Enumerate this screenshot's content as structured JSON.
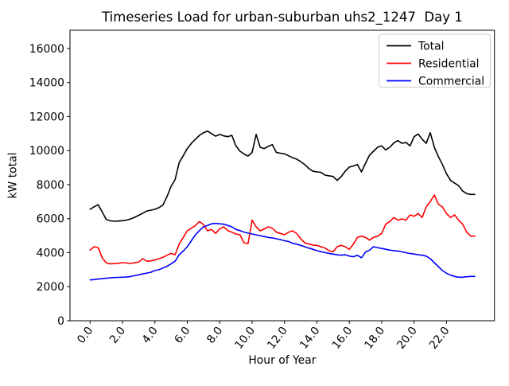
{
  "chart_data": {
    "type": "line",
    "title": "Timeseries Load for urban-suburban uhs2_1247  Day 1",
    "xlabel": "Hour of Year",
    "ylabel": "kW total",
    "xlim": [
      -1.24,
      24.96
    ],
    "ylim": [
      0,
      17076
    ],
    "grid": false,
    "legend_position": "upper right",
    "x_start": 0,
    "x_step": 0.25,
    "x_ticks": [
      0,
      2,
      4,
      6,
      8,
      10,
      12,
      14,
      16,
      18,
      20,
      22
    ],
    "x_tick_labels": [
      "0.0",
      "2.0",
      "4.0",
      "6.0",
      "8.0",
      "10.0",
      "12.0",
      "14.0",
      "16.0",
      "18.0",
      "20.0",
      "22.0"
    ],
    "y_ticks": [
      0,
      2000,
      4000,
      6000,
      8000,
      10000,
      12000,
      14000,
      16000
    ],
    "y_tick_labels": [
      "0",
      "2000",
      "4000",
      "6000",
      "8000",
      "10000",
      "12000",
      "14000",
      "16000"
    ],
    "series": [
      {
        "name": "Total",
        "color": "#000000",
        "values": [
          6550,
          6700,
          6820,
          6400,
          5950,
          5870,
          5850,
          5860,
          5880,
          5920,
          5980,
          6080,
          6200,
          6320,
          6450,
          6500,
          6550,
          6650,
          6800,
          7300,
          7900,
          8300,
          9300,
          9700,
          10120,
          10430,
          10670,
          10900,
          11050,
          11150,
          11000,
          10850,
          10950,
          10870,
          10820,
          10900,
          10280,
          9970,
          9800,
          9680,
          9900,
          10950,
          10200,
          10120,
          10250,
          10350,
          9890,
          9850,
          9810,
          9700,
          9580,
          9500,
          9350,
          9180,
          8950,
          8790,
          8750,
          8720,
          8560,
          8520,
          8480,
          8250,
          8470,
          8790,
          9030,
          9100,
          9185,
          8750,
          9260,
          9730,
          9965,
          10200,
          10280,
          10040,
          10200,
          10450,
          10590,
          10430,
          10480,
          10280,
          10820,
          10980,
          10670,
          10430,
          11055,
          10200,
          9650,
          9180,
          8640,
          8250,
          8090,
          7940,
          7620,
          7470,
          7424,
          7424
        ]
      },
      {
        "name": "Residential",
        "color": "#ff0000",
        "values": [
          4150,
          4350,
          4300,
          3700,
          3400,
          3340,
          3360,
          3380,
          3415,
          3390,
          3370,
          3410,
          3450,
          3650,
          3500,
          3520,
          3570,
          3650,
          3730,
          3850,
          3960,
          3880,
          4505,
          4900,
          5287,
          5442,
          5600,
          5833,
          5650,
          5287,
          5365,
          5130,
          5400,
          5520,
          5300,
          5209,
          5100,
          5053,
          4585,
          4538,
          5909,
          5520,
          5287,
          5400,
          5520,
          5442,
          5209,
          5130,
          5053,
          5209,
          5287,
          5130,
          4819,
          4585,
          4507,
          4450,
          4432,
          4350,
          4272,
          4117,
          4050,
          4351,
          4432,
          4351,
          4196,
          4507,
          4897,
          4975,
          4897,
          4740,
          4897,
          4975,
          5130,
          5675,
          5833,
          6066,
          5909,
          5988,
          5909,
          6222,
          6144,
          6300,
          6066,
          6690,
          7002,
          7391,
          6843,
          6690,
          6300,
          6066,
          6222,
          5909,
          5675,
          5209,
          4975,
          4975
        ]
      },
      {
        "name": "Commercial",
        "color": "#0000ff",
        "values": [
          2400,
          2420,
          2450,
          2470,
          2500,
          2520,
          2540,
          2550,
          2560,
          2570,
          2600,
          2650,
          2700,
          2750,
          2800,
          2850,
          2950,
          3000,
          3100,
          3200,
          3340,
          3500,
          3880,
          4100,
          4350,
          4700,
          5050,
          5300,
          5520,
          5600,
          5700,
          5720,
          5700,
          5675,
          5600,
          5520,
          5365,
          5300,
          5210,
          5150,
          5100,
          5050,
          5000,
          4950,
          4900,
          4870,
          4820,
          4770,
          4700,
          4660,
          4550,
          4500,
          4430,
          4350,
          4270,
          4200,
          4120,
          4060,
          4010,
          3960,
          3915,
          3880,
          3850,
          3880,
          3800,
          3760,
          3850,
          3700,
          4040,
          4150,
          4350,
          4300,
          4250,
          4200,
          4150,
          4120,
          4100,
          4050,
          4000,
          3950,
          3920,
          3880,
          3850,
          3800,
          3650,
          3415,
          3180,
          2950,
          2790,
          2680,
          2606,
          2560,
          2558,
          2588,
          2606,
          2606
        ]
      }
    ]
  }
}
